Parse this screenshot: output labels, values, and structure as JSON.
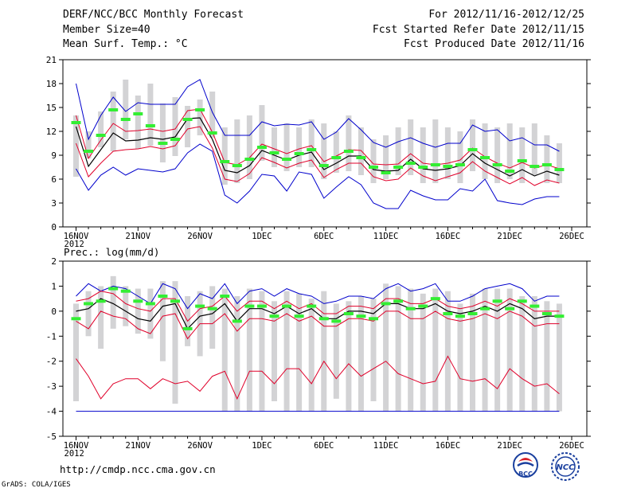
{
  "header": {
    "title": "DERF/NCC/BCC Monthly Forecast",
    "member": "Member Size=40",
    "variable": "Mean Surf. Temp.: °C",
    "period": "For 2012/11/16-2012/12/25",
    "started": "Fcst Started Refer Date 2012/11/15",
    "produced": "Fcst Produced Date 2012/11/16"
  },
  "footer": {
    "url": "http://cmdp.ncc.cma.gov.cn",
    "grads": "GrADS: COLA/IGES",
    "logo_bcc": "BCC",
    "logo_ncc": "NCC"
  },
  "colors": {
    "bar": "#d3d3d5",
    "mean": "#000000",
    "red": "#e0002a",
    "blue": "#0000cc",
    "green": "#33ee33"
  },
  "chart_data": [
    {
      "type": "line",
      "title": "Mean Surf. Temp.: °C",
      "ylim": [
        0,
        21
      ],
      "yticks": [
        0,
        3,
        6,
        9,
        12,
        15,
        18,
        21
      ],
      "xticks": [
        {
          "i": 0,
          "label": "16NOV",
          "sub": "2012"
        },
        {
          "i": 5,
          "label": "21NOV"
        },
        {
          "i": 10,
          "label": "26NOV"
        },
        {
          "i": 15,
          "label": "1DEC"
        },
        {
          "i": 20,
          "label": "6DEC"
        },
        {
          "i": 25,
          "label": "11DEC"
        },
        {
          "i": 30,
          "label": "16DEC"
        },
        {
          "i": 35,
          "label": "21DEC"
        },
        {
          "i": 40,
          "label": "26DEC"
        }
      ],
      "x_count": 40,
      "bars_low": [
        6.3,
        8.6,
        10.0,
        9.5,
        11.0,
        9.8,
        10.2,
        8.1,
        8.9,
        10.0,
        11.5,
        11.2,
        5.3,
        5.5,
        6.0,
        8.3,
        7.5,
        7.0,
        7.5,
        7.5,
        6.0,
        6.8,
        7.0,
        6.5,
        5.5,
        6.0,
        6.5,
        6.5,
        5.5,
        5.5,
        6.0,
        5.5,
        7.0,
        6.0,
        5.5,
        6.0,
        5.5,
        6.5,
        5.5,
        5.5
      ],
      "bars_high": [
        14.0,
        12.0,
        14.5,
        17.0,
        18.5,
        16.5,
        18.0,
        15.5,
        16.3,
        15.2,
        16.0,
        17.0,
        12.5,
        13.5,
        14.0,
        15.3,
        12.5,
        13.0,
        12.5,
        13.5,
        13.0,
        12.0,
        14.0,
        12.5,
        11.0,
        11.5,
        12.5,
        13.5,
        12.5,
        13.5,
        12.5,
        12.0,
        13.5,
        13.0,
        12.5,
        13.0,
        12.5,
        13.0,
        11.5,
        10.5
      ],
      "mean": [
        12.6,
        7.6,
        9.7,
        11.8,
        10.8,
        10.9,
        11.2,
        11.0,
        11.3,
        13.6,
        13.7,
        11.0,
        7.1,
        6.8,
        7.7,
        9.6,
        9.0,
        8.4,
        9.0,
        9.4,
        7.2,
        8.0,
        8.9,
        8.9,
        7.2,
        7.0,
        7.1,
        8.5,
        7.3,
        7.1,
        7.3,
        7.7,
        9.2,
        8.0,
        7.2,
        6.4,
        7.2,
        6.4,
        7.0,
        6.5
      ],
      "red_upper": [
        14.0,
        8.6,
        10.9,
        13.0,
        12.0,
        12.1,
        12.3,
        12.0,
        12.3,
        14.6,
        14.8,
        11.9,
        8.1,
        7.8,
        8.7,
        10.4,
        9.8,
        9.2,
        9.8,
        10.2,
        8.2,
        8.9,
        9.7,
        9.6,
        7.9,
        7.8,
        7.9,
        9.2,
        8.0,
        7.8,
        8.0,
        8.4,
        9.9,
        8.8,
        8.0,
        7.4,
        8.1,
        7.4,
        7.8,
        7.3
      ],
      "red_lower": [
        10.5,
        6.3,
        8.0,
        9.5,
        9.7,
        9.8,
        10.1,
        9.8,
        10.2,
        12.3,
        12.6,
        9.9,
        6.0,
        5.7,
        6.7,
        8.7,
        8.1,
        7.4,
        8.0,
        8.4,
        6.2,
        7.2,
        8.0,
        8.0,
        6.3,
        5.8,
        6.0,
        7.4,
        6.4,
        5.8,
        6.3,
        6.8,
        8.2,
        7.0,
        6.2,
        5.4,
        6.2,
        5.2,
        5.9,
        5.5
      ],
      "blue_upper": [
        18.0,
        11.0,
        14.0,
        16.3,
        14.5,
        15.6,
        15.4,
        15.4,
        15.4,
        17.6,
        18.5,
        14.4,
        11.5,
        11.5,
        11.5,
        13.2,
        12.7,
        12.9,
        12.8,
        13.2,
        11.0,
        11.9,
        13.6,
        12.2,
        10.6,
        10.0,
        10.7,
        11.2,
        10.5,
        10.0,
        10.5,
        10.5,
        12.8,
        12.0,
        12.2,
        10.8,
        11.2,
        10.3,
        10.3,
        9.5
      ],
      "blue_lower": [
        7.3,
        4.6,
        6.5,
        7.5,
        6.5,
        7.3,
        7.1,
        6.9,
        7.3,
        9.3,
        10.4,
        9.5,
        4.0,
        3.0,
        4.5,
        6.6,
        6.4,
        4.5,
        6.9,
        6.6,
        3.6,
        5.0,
        6.3,
        5.3,
        3.0,
        2.3,
        2.3,
        4.6,
        3.9,
        3.4,
        3.4,
        4.8,
        4.5,
        6.0,
        3.3,
        3.0,
        2.8,
        3.5,
        3.8,
        3.8
      ],
      "green": [
        13.1,
        9.5,
        11.5,
        14.7,
        13.5,
        14.2,
        12.7,
        10.5,
        11.0,
        13.5,
        14.7,
        11.8,
        8.2,
        7.7,
        8.5,
        10.0,
        9.3,
        8.5,
        9.2,
        9.7,
        7.7,
        8.7,
        9.5,
        8.7,
        7.5,
        6.8,
        7.5,
        8.0,
        7.5,
        7.8,
        7.6,
        7.8,
        9.7,
        8.7,
        7.8,
        7.0,
        8.3,
        7.6,
        7.8,
        7.2
      ]
    },
    {
      "type": "line",
      "title": "Prec.: log(mm/d)",
      "ylim": [
        -5,
        2
      ],
      "yticks": [
        -5,
        -4,
        -3,
        -2,
        -1,
        0,
        1,
        2
      ],
      "xticks": [
        {
          "i": 0,
          "label": "16NOV",
          "sub": "2012"
        },
        {
          "i": 5,
          "label": "21NOV"
        },
        {
          "i": 10,
          "label": "26NOV"
        },
        {
          "i": 15,
          "label": "1DEC"
        },
        {
          "i": 20,
          "label": "6DEC"
        },
        {
          "i": 25,
          "label": "11DEC"
        },
        {
          "i": 30,
          "label": "16DEC"
        },
        {
          "i": 35,
          "label": "21DEC"
        },
        {
          "i": 40,
          "label": "26DEC"
        }
      ],
      "x_count": 40,
      "bars_low": [
        -3.6,
        -1.0,
        -1.5,
        -0.7,
        -0.6,
        -0.9,
        -1.1,
        -2.0,
        -3.7,
        -1.4,
        -1.8,
        -1.5,
        -4.0,
        -4.0,
        -4.0,
        -4.0,
        -3.6,
        -4.0,
        -4.0,
        -4.0,
        -4.0,
        -3.5,
        -4.0,
        -4.0,
        -3.6,
        -4.0,
        -4.0,
        -4.0,
        -4.0,
        -4.0,
        -4.0,
        -4.0,
        -4.0,
        -4.0,
        -4.0,
        -4.0,
        -4.0,
        -4.0,
        -4.0,
        -4.0
      ],
      "bars_high": [
        0.3,
        0.8,
        1.0,
        1.4,
        1.0,
        0.9,
        0.9,
        1.2,
        1.2,
        0.6,
        0.8,
        1.0,
        0.9,
        0.6,
        0.9,
        0.8,
        0.4,
        0.8,
        0.7,
        0.5,
        0.8,
        0.3,
        0.4,
        0.6,
        0.5,
        1.1,
        1.0,
        0.9,
        0.7,
        0.9,
        0.8,
        0.3,
        0.7,
        0.9,
        0.9,
        0.9,
        0.6,
        0.6,
        0.4,
        0.3
      ],
      "mean": [
        0.0,
        0.1,
        0.5,
        0.3,
        0.0,
        -0.3,
        -0.4,
        0.2,
        0.3,
        -0.7,
        -0.2,
        -0.1,
        0.3,
        -0.4,
        0.1,
        0.1,
        -0.1,
        0.2,
        -0.1,
        0.1,
        -0.3,
        -0.3,
        0.0,
        0.0,
        -0.1,
        0.3,
        0.3,
        0.1,
        0.1,
        0.3,
        0.0,
        -0.1,
        0.0,
        0.2,
        0.0,
        0.3,
        0.1,
        -0.3,
        -0.2,
        -0.2
      ],
      "red_upper": [
        0.4,
        0.5,
        0.8,
        0.7,
        0.3,
        0.1,
        0.0,
        0.5,
        0.5,
        -0.4,
        0.1,
        0.2,
        0.6,
        0.0,
        0.4,
        0.4,
        0.1,
        0.4,
        0.1,
        0.3,
        -0.1,
        -0.1,
        0.2,
        0.2,
        0.1,
        0.5,
        0.5,
        0.3,
        0.3,
        0.5,
        0.2,
        0.1,
        0.2,
        0.4,
        0.2,
        0.5,
        0.3,
        0.0,
        0.0,
        0.0
      ],
      "red_lower": [
        -0.4,
        -0.7,
        0.0,
        -0.2,
        -0.3,
        -0.7,
        -0.9,
        -0.2,
        -0.1,
        -1.1,
        -0.5,
        -0.5,
        -0.1,
        -0.8,
        -0.3,
        -0.3,
        -0.4,
        -0.1,
        -0.4,
        -0.2,
        -0.6,
        -0.6,
        -0.3,
        -0.3,
        -0.4,
        0.0,
        0.0,
        -0.3,
        -0.3,
        0.0,
        -0.3,
        -0.4,
        -0.3,
        -0.1,
        -0.3,
        0.0,
        -0.2,
        -0.6,
        -0.5,
        -0.5
      ],
      "red_bottom": [
        -1.9,
        -2.6,
        -3.5,
        -2.9,
        -2.7,
        -2.7,
        -3.1,
        -2.7,
        -2.9,
        -2.8,
        -3.2,
        -2.6,
        -2.4,
        -3.5,
        -2.4,
        -2.4,
        -2.9,
        -2.3,
        -2.3,
        -2.9,
        -2.0,
        -2.7,
        -2.1,
        -2.6,
        -2.3,
        -2.0,
        -2.5,
        -2.7,
        -2.9,
        -2.8,
        -1.8,
        -2.7,
        -2.8,
        -2.7,
        -3.1,
        -2.3,
        -2.7,
        -3.0,
        -2.9,
        -3.3
      ],
      "blue_upper": [
        0.6,
        1.1,
        0.8,
        1.0,
        0.9,
        0.6,
        0.3,
        1.1,
        0.9,
        0.1,
        0.7,
        0.5,
        1.1,
        0.3,
        0.8,
        0.9,
        0.6,
        0.9,
        0.7,
        0.6,
        0.3,
        0.4,
        0.6,
        0.6,
        0.5,
        0.9,
        1.1,
        0.8,
        0.9,
        1.1,
        0.4,
        0.4,
        0.6,
        0.9,
        1.0,
        1.1,
        0.9,
        0.4,
        0.6,
        0.6
      ],
      "blue_lower": [
        -4.0,
        -4.0,
        -4.0,
        -4.0,
        -4.0,
        -4.0,
        -4.0,
        -4.0,
        -4.0,
        -4.0,
        -4.0,
        -4.0,
        -4.0,
        -4.0,
        -4.0,
        -4.0,
        -4.0,
        -4.0,
        -4.0,
        -4.0,
        -4.0,
        -4.0,
        -4.0,
        -4.0,
        -4.0,
        -4.0,
        -4.0,
        -4.0,
        -4.0,
        -4.0,
        -4.0,
        -4.0,
        -4.0,
        -4.0,
        -4.0,
        -4.0,
        -4.0,
        -4.0,
        -4.0,
        -4.0
      ],
      "green": [
        -0.3,
        0.3,
        0.4,
        0.9,
        0.8,
        0.4,
        0.3,
        0.6,
        0.4,
        -0.7,
        0.2,
        0.1,
        0.6,
        -0.4,
        0.2,
        0.2,
        -0.2,
        0.2,
        -0.2,
        0.2,
        -0.3,
        -0.4,
        -0.1,
        -0.2,
        -0.3,
        0.3,
        0.4,
        0.1,
        0.2,
        0.5,
        -0.1,
        -0.2,
        -0.1,
        0.1,
        0.4,
        0.1,
        0.4,
        0.2,
        -0.1,
        -0.2
      ]
    }
  ]
}
